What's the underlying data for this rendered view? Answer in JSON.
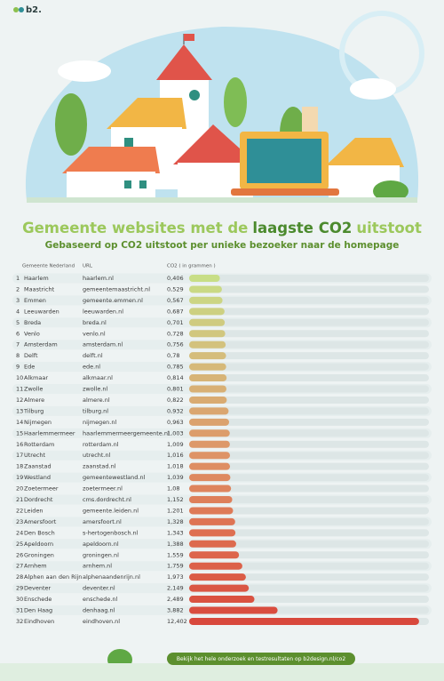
{
  "brand": "b2.",
  "chart_data": {
    "type": "bar",
    "orientation": "horizontal",
    "title": [
      "Gemeente websites met de",
      "laagste CO2",
      "uitstoot"
    ],
    "subtitle": "Gebaseerd op CO2 uitstoot per unieke bezoeker naar de homepage",
    "column_headers": [
      "Gemeente Nederland",
      "URL",
      "CO2 ( in grammen )"
    ],
    "ranks": [
      "1",
      "2",
      "3",
      "4",
      "5",
      "6",
      "7",
      "8",
      "9",
      "10",
      "11",
      "12",
      "13",
      "14",
      "15",
      "16",
      "17",
      "18",
      "19",
      "20",
      "21",
      "22",
      "23",
      "24",
      "25",
      "26",
      "27",
      "28",
      "29",
      "30",
      "31",
      "32"
    ],
    "categories": [
      "Haarlem",
      "Maastricht",
      "Emmen",
      "Leeuwarden",
      "Breda",
      "Venlo",
      "Amsterdam",
      "Delft",
      "Ede",
      "Alkmaar",
      "Zwolle",
      "Almere",
      "Tilburg",
      "Nijmegen",
      "Haarlemmermeer",
      "Rotterdam",
      "Utrecht",
      "Zaanstad",
      "Westland",
      "Zoetermeer",
      "Dordrecht",
      "Leiden",
      "Amersfoort",
      "Den Bosch",
      "Apeldoorn",
      "Groningen",
      "Arnhem",
      "Alphen aan den Rijn",
      "Deventer",
      "Enschede",
      "Den Haag",
      "Eindhoven"
    ],
    "urls": [
      "haarlem.nl",
      "gemeentemaastricht.nl",
      "gemeente.emmen.nl",
      "leeuwarden.nl",
      "breda.nl",
      "venlo.nl",
      "amsterdam.nl",
      "delft.nl",
      "ede.nl",
      "alkmaar.nl",
      "zwolle.nl",
      "almere.nl",
      "tilburg.nl",
      "nijmegen.nl",
      "haarlemmermeergemeente.nl",
      "rotterdam.nl",
      "utrecht.nl",
      "zaanstad.nl",
      "gemeentewestland.nl",
      "zoetermeer.nl",
      "cms.dordrecht.nl",
      "gemeente.leiden.nl",
      "amersfoort.nl",
      "s-hertogenbosch.nl",
      "apeldoorn.nl",
      "groningen.nl",
      "arnhem.nl",
      "alphenaandenrijn.nl",
      "deventer.nl",
      "enschede.nl",
      "denhaag.nl",
      "eindhoven.nl"
    ],
    "values": [
      0.406,
      0.529,
      0.567,
      0.687,
      0.701,
      0.728,
      0.756,
      0.78,
      0.785,
      0.814,
      0.801,
      0.822,
      0.932,
      0.963,
      1.003,
      1.009,
      1.016,
      1.018,
      1.039,
      1.08,
      1.152,
      1.201,
      1.328,
      1.343,
      1.388,
      1.559,
      1.759,
      1.973,
      2.149,
      2.489,
      3.882,
      12.402
    ],
    "value_labels": [
      "0,406",
      "0,529",
      "0,567",
      "0,687",
      "0,701",
      "0,728",
      "0,756",
      "0,78",
      "0,785",
      "0,814",
      "0,801",
      "0,822",
      "0,932",
      "0,963",
      "1,003",
      "1,009",
      "1,016",
      "1,018",
      "1,039",
      "1,08",
      "1,152",
      "1,201",
      "1,328",
      "1,343",
      "1,388",
      "1,559",
      "1,759",
      "1,973",
      "2,149",
      "2,489",
      "3,882",
      "12,402"
    ]
  },
  "footer_button": "Bekijk het hele onderzoek en testresultaten op b2design.nl/co2"
}
